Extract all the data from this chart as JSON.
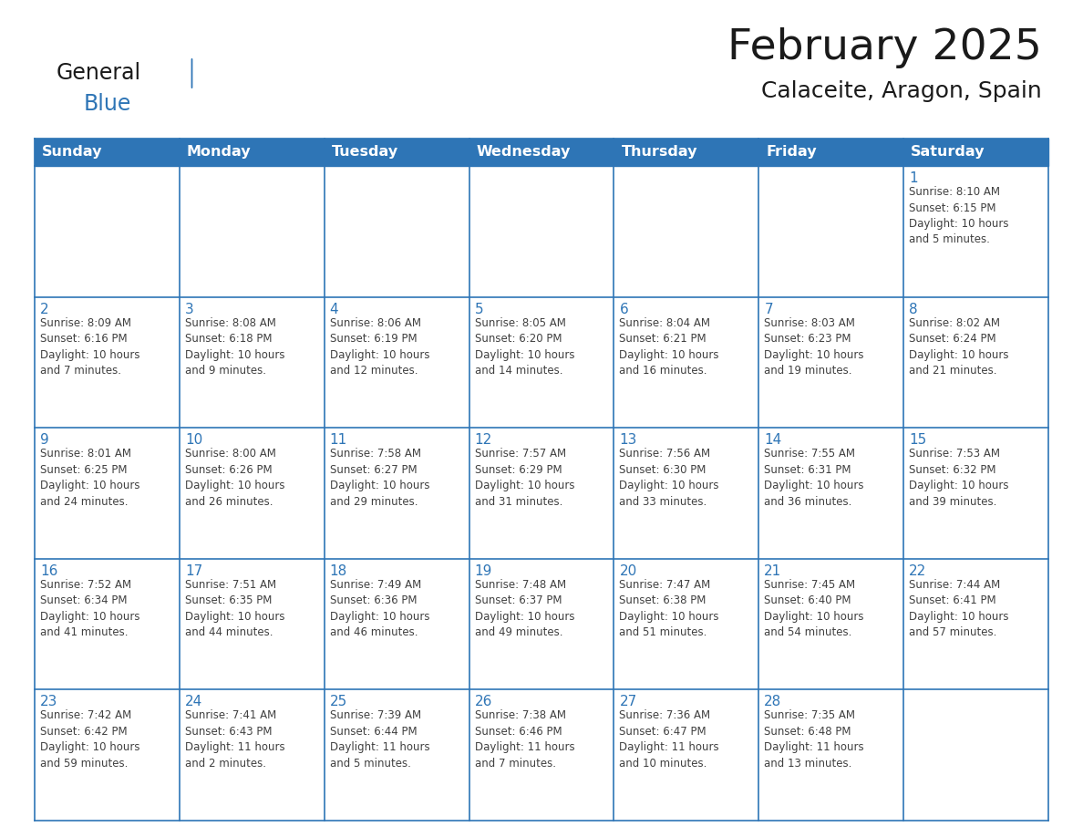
{
  "title": "February 2025",
  "subtitle": "Calaceite, Aragon, Spain",
  "header_bg": "#2E75B6",
  "header_text_color": "#FFFFFF",
  "cell_text_color": "#404040",
  "day_number_color": "#2E75B6",
  "border_color": "#2E75B6",
  "background_color": "#FFFFFF",
  "days_of_week": [
    "Sunday",
    "Monday",
    "Tuesday",
    "Wednesday",
    "Thursday",
    "Friday",
    "Saturday"
  ],
  "weeks": [
    [
      {
        "day": null,
        "info": null
      },
      {
        "day": null,
        "info": null
      },
      {
        "day": null,
        "info": null
      },
      {
        "day": null,
        "info": null
      },
      {
        "day": null,
        "info": null
      },
      {
        "day": null,
        "info": null
      },
      {
        "day": 1,
        "info": "Sunrise: 8:10 AM\nSunset: 6:15 PM\nDaylight: 10 hours\nand 5 minutes."
      }
    ],
    [
      {
        "day": 2,
        "info": "Sunrise: 8:09 AM\nSunset: 6:16 PM\nDaylight: 10 hours\nand 7 minutes."
      },
      {
        "day": 3,
        "info": "Sunrise: 8:08 AM\nSunset: 6:18 PM\nDaylight: 10 hours\nand 9 minutes."
      },
      {
        "day": 4,
        "info": "Sunrise: 8:06 AM\nSunset: 6:19 PM\nDaylight: 10 hours\nand 12 minutes."
      },
      {
        "day": 5,
        "info": "Sunrise: 8:05 AM\nSunset: 6:20 PM\nDaylight: 10 hours\nand 14 minutes."
      },
      {
        "day": 6,
        "info": "Sunrise: 8:04 AM\nSunset: 6:21 PM\nDaylight: 10 hours\nand 16 minutes."
      },
      {
        "day": 7,
        "info": "Sunrise: 8:03 AM\nSunset: 6:23 PM\nDaylight: 10 hours\nand 19 minutes."
      },
      {
        "day": 8,
        "info": "Sunrise: 8:02 AM\nSunset: 6:24 PM\nDaylight: 10 hours\nand 21 minutes."
      }
    ],
    [
      {
        "day": 9,
        "info": "Sunrise: 8:01 AM\nSunset: 6:25 PM\nDaylight: 10 hours\nand 24 minutes."
      },
      {
        "day": 10,
        "info": "Sunrise: 8:00 AM\nSunset: 6:26 PM\nDaylight: 10 hours\nand 26 minutes."
      },
      {
        "day": 11,
        "info": "Sunrise: 7:58 AM\nSunset: 6:27 PM\nDaylight: 10 hours\nand 29 minutes."
      },
      {
        "day": 12,
        "info": "Sunrise: 7:57 AM\nSunset: 6:29 PM\nDaylight: 10 hours\nand 31 minutes."
      },
      {
        "day": 13,
        "info": "Sunrise: 7:56 AM\nSunset: 6:30 PM\nDaylight: 10 hours\nand 33 minutes."
      },
      {
        "day": 14,
        "info": "Sunrise: 7:55 AM\nSunset: 6:31 PM\nDaylight: 10 hours\nand 36 minutes."
      },
      {
        "day": 15,
        "info": "Sunrise: 7:53 AM\nSunset: 6:32 PM\nDaylight: 10 hours\nand 39 minutes."
      }
    ],
    [
      {
        "day": 16,
        "info": "Sunrise: 7:52 AM\nSunset: 6:34 PM\nDaylight: 10 hours\nand 41 minutes."
      },
      {
        "day": 17,
        "info": "Sunrise: 7:51 AM\nSunset: 6:35 PM\nDaylight: 10 hours\nand 44 minutes."
      },
      {
        "day": 18,
        "info": "Sunrise: 7:49 AM\nSunset: 6:36 PM\nDaylight: 10 hours\nand 46 minutes."
      },
      {
        "day": 19,
        "info": "Sunrise: 7:48 AM\nSunset: 6:37 PM\nDaylight: 10 hours\nand 49 minutes."
      },
      {
        "day": 20,
        "info": "Sunrise: 7:47 AM\nSunset: 6:38 PM\nDaylight: 10 hours\nand 51 minutes."
      },
      {
        "day": 21,
        "info": "Sunrise: 7:45 AM\nSunset: 6:40 PM\nDaylight: 10 hours\nand 54 minutes."
      },
      {
        "day": 22,
        "info": "Sunrise: 7:44 AM\nSunset: 6:41 PM\nDaylight: 10 hours\nand 57 minutes."
      }
    ],
    [
      {
        "day": 23,
        "info": "Sunrise: 7:42 AM\nSunset: 6:42 PM\nDaylight: 10 hours\nand 59 minutes."
      },
      {
        "day": 24,
        "info": "Sunrise: 7:41 AM\nSunset: 6:43 PM\nDaylight: 11 hours\nand 2 minutes."
      },
      {
        "day": 25,
        "info": "Sunrise: 7:39 AM\nSunset: 6:44 PM\nDaylight: 11 hours\nand 5 minutes."
      },
      {
        "day": 26,
        "info": "Sunrise: 7:38 AM\nSunset: 6:46 PM\nDaylight: 11 hours\nand 7 minutes."
      },
      {
        "day": 27,
        "info": "Sunrise: 7:36 AM\nSunset: 6:47 PM\nDaylight: 11 hours\nand 10 minutes."
      },
      {
        "day": 28,
        "info": "Sunrise: 7:35 AM\nSunset: 6:48 PM\nDaylight: 11 hours\nand 13 minutes."
      },
      {
        "day": null,
        "info": null
      }
    ]
  ],
  "logo_general_color": "#1a1a1a",
  "logo_blue_color": "#2E75B6",
  "title_fontsize": 34,
  "subtitle_fontsize": 18,
  "header_fontsize": 11.5,
  "day_num_fontsize": 11,
  "cell_info_fontsize": 8.5
}
